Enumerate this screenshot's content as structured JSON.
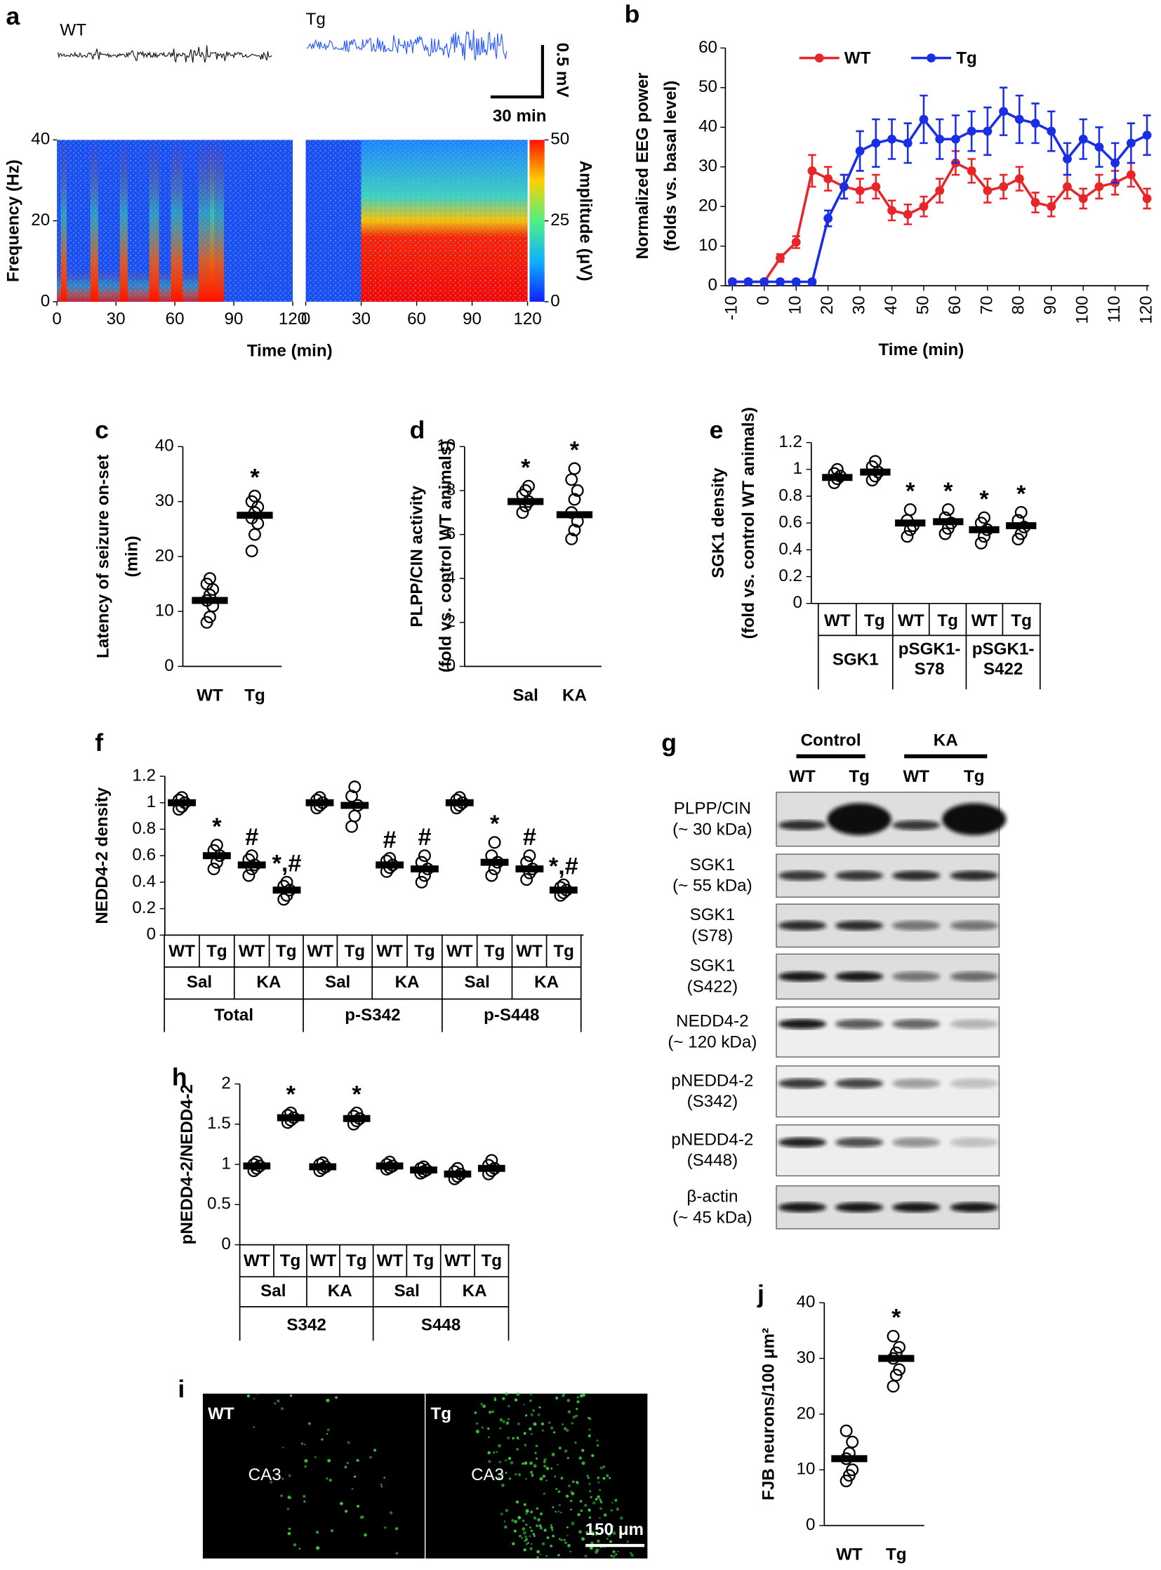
{
  "chart_data": [
    {
      "type": "spectrogram",
      "panel_label": "a",
      "panels": [
        "WT",
        "Tg"
      ],
      "scale_bar": [
        "0.5 mV",
        "30 min"
      ],
      "xlim": [
        0,
        120
      ],
      "xticks": [
        0,
        30,
        60,
        90,
        120
      ],
      "ylim": [
        0,
        40
      ],
      "yticks": [
        0,
        20,
        40
      ],
      "xlabel": "Time (min)",
      "ylabel": "Frequency (Hz)",
      "colorbar": {
        "label": "Amplitude (μV)",
        "lim": [
          0,
          50
        ],
        "ticks": [
          0,
          25,
          50
        ]
      }
    },
    {
      "type": "line",
      "panel_label": "b",
      "x": [
        -10,
        -5,
        0,
        5,
        10,
        15,
        20,
        25,
        30,
        35,
        40,
        45,
        50,
        55,
        60,
        65,
        70,
        75,
        80,
        85,
        90,
        95,
        100,
        105,
        110,
        115,
        120
      ],
      "series": [
        {
          "name": "WT",
          "color": "#e8262a",
          "values": [
            1,
            1,
            1,
            7,
            11,
            29,
            27,
            25,
            24,
            25,
            19,
            18,
            20,
            24,
            31,
            29,
            24,
            25,
            27,
            21,
            20,
            25,
            22,
            25,
            26,
            28,
            22
          ],
          "errors": [
            0.5,
            0.5,
            0.5,
            1,
            1.5,
            4,
            3,
            3,
            3,
            3,
            2.5,
            2.5,
            2.5,
            3,
            3,
            3,
            3,
            3,
            3,
            2.5,
            2.5,
            3,
            2.5,
            3,
            3,
            3,
            2.5
          ]
        },
        {
          "name": "Tg",
          "color": "#1a2ee6",
          "values": [
            1,
            1,
            1,
            1,
            1,
            1,
            17,
            25,
            34,
            36,
            37,
            36,
            42,
            37,
            37,
            39,
            39,
            44,
            42,
            41,
            39,
            32,
            37,
            35,
            31,
            36,
            38
          ],
          "errors": [
            0.5,
            0.5,
            0.5,
            0.5,
            0.5,
            0.5,
            2,
            3,
            5,
            6,
            5,
            5,
            6,
            5,
            6,
            5,
            6,
            6,
            6,
            5,
            5,
            4,
            5,
            5,
            5,
            5,
            5
          ]
        }
      ],
      "xlim": [
        -10,
        120
      ],
      "xticks": [
        -10,
        0,
        10,
        20,
        30,
        40,
        50,
        60,
        70,
        80,
        90,
        100,
        110,
        120
      ],
      "ylim": [
        0,
        60
      ],
      "yticks": [
        0,
        10,
        20,
        30,
        40,
        50,
        60
      ],
      "xlabel": "Time (min)",
      "ylabel": [
        "Normalized EEG power",
        "(folds vs. basal level)"
      ]
    },
    {
      "type": "dot",
      "panel_label": "c",
      "categories": [
        "WT",
        "Tg"
      ],
      "values": [
        12,
        27.5
      ],
      "points": [
        [
          8,
          9,
          11,
          12,
          13,
          14,
          15,
          16
        ],
        [
          21,
          24,
          26,
          27,
          28,
          29,
          30,
          31
        ]
      ],
      "annotations": [
        null,
        "*"
      ],
      "ylim": [
        0,
        40
      ],
      "yticks": [
        0,
        10,
        20,
        30,
        40
      ],
      "ylabel": [
        "Latency of seizure on-set",
        "(min)"
      ]
    },
    {
      "type": "dot",
      "panel_label": "d",
      "categories": [
        "Sal",
        "KA"
      ],
      "values": [
        7.5,
        6.9
      ],
      "points": [
        [
          7,
          7.3,
          7.5,
          7.8,
          8,
          8.2
        ],
        [
          5.8,
          6.2,
          6.6,
          7,
          7.6,
          8,
          8.5,
          9
        ]
      ],
      "annotations": [
        "*",
        "*"
      ],
      "ylim": [
        0,
        10
      ],
      "yticks": [
        0,
        2,
        4,
        6,
        8,
        10
      ],
      "ylabel": [
        "PLPP/CIN activity",
        "(fold vs. control WT animals)"
      ]
    },
    {
      "type": "dot",
      "panel_label": "e",
      "categories": [
        "WT",
        "Tg",
        "WT",
        "Tg",
        "WT",
        "Tg"
      ],
      "category_groups": [
        [
          "SGK1",
          "pSGK1-S78",
          "pSGK1-S422"
        ]
      ],
      "values": [
        0.94,
        0.98,
        0.6,
        0.61,
        0.55,
        0.58
      ],
      "points": [
        [
          0.9,
          0.93,
          0.95,
          0.97,
          1.0
        ],
        [
          0.92,
          0.95,
          0.98,
          1.02,
          1.06
        ],
        [
          0.5,
          0.55,
          0.58,
          0.62,
          0.7
        ],
        [
          0.52,
          0.56,
          0.6,
          0.64,
          0.7
        ],
        [
          0.45,
          0.5,
          0.55,
          0.6,
          0.64
        ],
        [
          0.48,
          0.52,
          0.57,
          0.62,
          0.68
        ]
      ],
      "annotations": [
        null,
        null,
        "*",
        "*",
        "*",
        "*"
      ],
      "ylim": [
        0,
        1.2
      ],
      "yticks": [
        0,
        0.2,
        0.4,
        0.6,
        0.8,
        1,
        1.2
      ],
      "ylabel": [
        "SGK1 density",
        "(fold vs. control WT animals)"
      ]
    },
    {
      "type": "dot",
      "panel_label": "f",
      "categories": [
        "WT",
        "Tg",
        "WT",
        "Tg",
        "WT",
        "Tg",
        "WT",
        "Tg",
        "WT",
        "Tg",
        "WT",
        "Tg"
      ],
      "category_groups": [
        [
          "Sal",
          "KA",
          "Sal",
          "KA",
          "Sal",
          "KA"
        ],
        [
          "Total",
          "p-S342",
          "p-S448"
        ]
      ],
      "values": [
        1,
        0.6,
        0.53,
        0.34,
        1,
        0.98,
        0.53,
        0.5,
        1,
        0.55,
        0.5,
        0.34
      ],
      "points": [
        [
          0.95,
          0.97,
          1,
          1.02,
          1.04
        ],
        [
          0.5,
          0.55,
          0.6,
          0.64,
          0.68
        ],
        [
          0.45,
          0.5,
          0.53,
          0.57,
          0.6
        ],
        [
          0.27,
          0.3,
          0.34,
          0.37,
          0.4
        ],
        [
          0.96,
          0.98,
          1,
          1.02,
          1.04
        ],
        [
          0.82,
          0.9,
          0.98,
          1.05,
          1.12
        ],
        [
          0.48,
          0.51,
          0.53,
          0.56,
          0.58
        ],
        [
          0.4,
          0.45,
          0.5,
          0.55,
          0.6
        ],
        [
          0.96,
          0.98,
          1,
          1.02,
          1.04
        ],
        [
          0.45,
          0.5,
          0.55,
          0.6,
          0.7
        ],
        [
          0.42,
          0.47,
          0.5,
          0.55,
          0.6
        ],
        [
          0.3,
          0.32,
          0.34,
          0.36,
          0.38
        ]
      ],
      "annotations": [
        null,
        "*",
        "#",
        "*,#",
        null,
        null,
        "#",
        "#",
        null,
        "*",
        "#",
        "*,#"
      ],
      "ylim": [
        0,
        1.2
      ],
      "yticks": [
        0,
        0.2,
        0.4,
        0.6,
        0.8,
        1,
        1.2
      ],
      "ylabel": [
        "NEDD4-2 density"
      ]
    },
    {
      "type": "blot",
      "panel_label": "g",
      "groups": [
        "Control",
        "KA"
      ],
      "lanes": [
        "WT",
        "Tg",
        "WT",
        "Tg"
      ],
      "rows": [
        [
          "PLPP/CIN",
          "(~ 30 kDa)"
        ],
        [
          "SGK1",
          "(~ 55 kDa)"
        ],
        [
          "SGK1",
          "(S78)"
        ],
        [
          "SGK1",
          "(S422)"
        ],
        [
          "NEDD4-2",
          "(~ 120 kDa)"
        ],
        [
          "pNEDD4-2",
          "(S342)"
        ],
        [
          "pNEDD4-2",
          "(S448)"
        ],
        [
          "β-actin",
          "(~ 45 kDa)"
        ]
      ]
    },
    {
      "type": "dot",
      "panel_label": "h",
      "categories": [
        "WT",
        "Tg",
        "WT",
        "Tg",
        "WT",
        "Tg",
        "WT",
        "Tg"
      ],
      "category_groups": [
        [
          "Sal",
          "KA",
          "Sal",
          "KA"
        ],
        [
          "S342",
          "S448"
        ]
      ],
      "values": [
        0.98,
        1.58,
        0.97,
        1.57,
        0.98,
        0.93,
        0.88,
        0.95
      ],
      "points": [
        [
          0.92,
          0.95,
          0.98,
          1.0,
          1.03
        ],
        [
          1.52,
          1.55,
          1.58,
          1.61,
          1.64
        ],
        [
          0.92,
          0.95,
          0.97,
          1.0,
          1.02
        ],
        [
          1.5,
          1.54,
          1.57,
          1.6,
          1.64
        ],
        [
          0.94,
          0.96,
          0.98,
          1,
          1.03
        ],
        [
          0.89,
          0.91,
          0.93,
          0.95,
          0.97
        ],
        [
          0.82,
          0.85,
          0.88,
          0.91,
          0.95
        ],
        [
          0.88,
          0.92,
          0.95,
          0.99,
          1.05
        ]
      ],
      "annotations": [
        null,
        "*",
        null,
        "*",
        null,
        null,
        null,
        null
      ],
      "ylim": [
        0,
        2
      ],
      "yticks": [
        0,
        0.5,
        1,
        1.5,
        2
      ],
      "ylabel": [
        "pNEDD4-2/NEDD4-2"
      ]
    },
    {
      "type": "image",
      "panel_label": "i",
      "panels": [
        "WT",
        "Tg"
      ],
      "region": "CA3",
      "scale_bar": "150 μm"
    },
    {
      "type": "dot",
      "panel_label": "j",
      "categories": [
        "WT",
        "Tg"
      ],
      "values": [
        12,
        30
      ],
      "points": [
        [
          8,
          9,
          10,
          12,
          13,
          15,
          17
        ],
        [
          25,
          27,
          28,
          30,
          31,
          32,
          34
        ]
      ],
      "annotations": [
        null,
        "*"
      ],
      "ylim": [
        0,
        40
      ],
      "yticks": [
        0,
        10,
        20,
        30,
        40
      ],
      "ylabel": [
        "FJB neurons/100 μm²"
      ]
    }
  ]
}
